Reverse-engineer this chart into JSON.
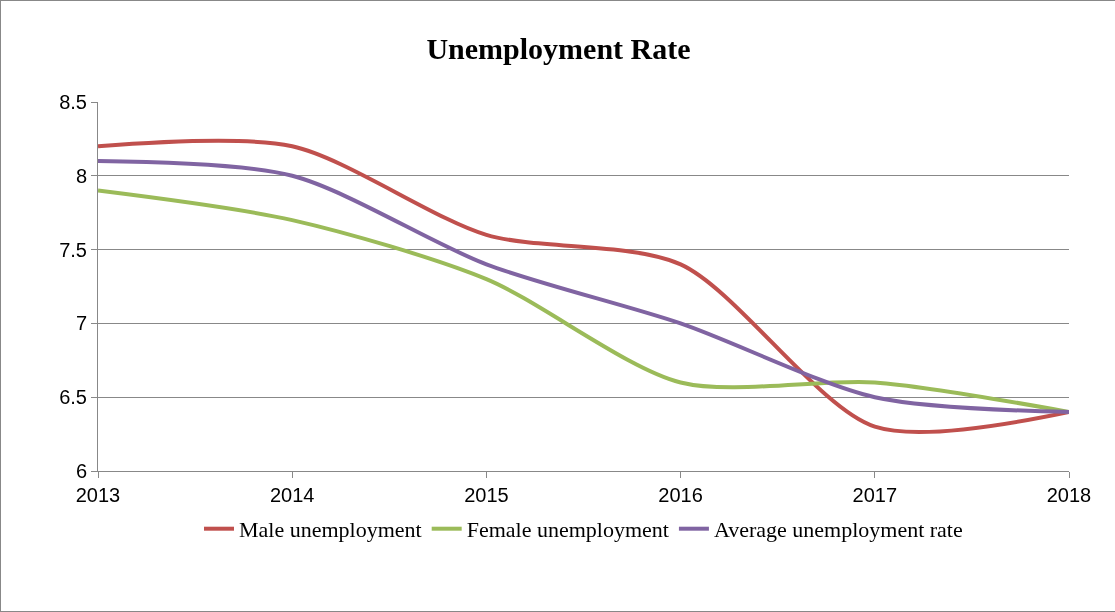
{
  "chart_data": {
    "type": "line",
    "title": "Unemployment Rate",
    "x": [
      2013,
      2014,
      2015,
      2016,
      2017,
      2018
    ],
    "xlim": [
      2013,
      2018
    ],
    "xticks": [
      2013,
      2014,
      2015,
      2016,
      2017,
      2018
    ],
    "ylim": [
      6,
      8.5
    ],
    "yticks": [
      6,
      6.5,
      7,
      7.5,
      8,
      8.5
    ],
    "grid": "y",
    "legend": "bottom",
    "marker": "none",
    "line_style": "solid",
    "series": [
      {
        "name": "Male unemployment",
        "color": "#c0504d",
        "values": [
          8.2,
          8.2,
          7.6,
          7.4,
          6.3,
          6.4
        ]
      },
      {
        "name": "Female unemployment",
        "color": "#9bbb59",
        "values": [
          7.9,
          7.7,
          7.3,
          6.6,
          6.6,
          6.4
        ]
      },
      {
        "name": "Average unemployment rate",
        "color": "#8064a2",
        "values": [
          8.1,
          8.0,
          7.4,
          7.0,
          6.5,
          6.4
        ]
      }
    ]
  }
}
